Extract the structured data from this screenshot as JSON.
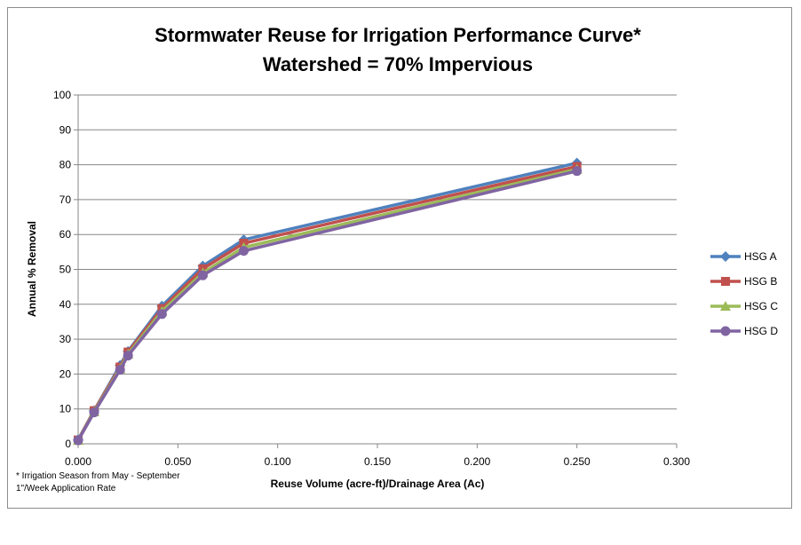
{
  "chart_data": {
    "type": "line",
    "title": [
      "Stormwater Reuse for Irrigation Performance Curve*",
      "Watershed = 70% Impervious"
    ],
    "xlabel": "Reuse Volume (acre-ft)/Drainage Area (Ac)",
    "ylabel": "Annual % Removal",
    "xlim": [
      0,
      0.3
    ],
    "ylim": [
      0,
      100
    ],
    "xticks": [
      "0.000",
      "0.050",
      "0.100",
      "0.150",
      "0.200",
      "0.250",
      "0.300"
    ],
    "yticks": [
      "0",
      "10",
      "20",
      "30",
      "40",
      "50",
      "60",
      "70",
      "80",
      "90",
      "100"
    ],
    "grid": "horizontal",
    "legend_position": "right",
    "x": [
      0,
      0.008,
      0.021,
      0.025,
      0.042,
      0.0625,
      0.083,
      0.25
    ],
    "series": [
      {
        "name": "HSG A",
        "color": "#4f81bd",
        "marker": "diamond",
        "values": [
          1.2,
          9.5,
          22.5,
          26.5,
          39.5,
          51,
          58.5,
          80.5
        ]
      },
      {
        "name": "HSG B",
        "color": "#c0504d",
        "marker": "square",
        "values": [
          1.1,
          9.5,
          22,
          26.3,
          38.8,
          50.2,
          57.5,
          79.5
        ]
      },
      {
        "name": "HSG C",
        "color": "#9bbb59",
        "marker": "triangle",
        "values": [
          1.0,
          9.2,
          21.5,
          25.7,
          38,
          49,
          56.3,
          78.7
        ]
      },
      {
        "name": "HSG D",
        "color": "#8064a2",
        "marker": "circle",
        "values": [
          1.0,
          9.0,
          21.2,
          25.3,
          37.2,
          48.3,
          55.3,
          78.2
        ]
      }
    ],
    "notes": [
      "* Irrigation Season from May - September",
      "1\"/Week Application Rate"
    ]
  }
}
